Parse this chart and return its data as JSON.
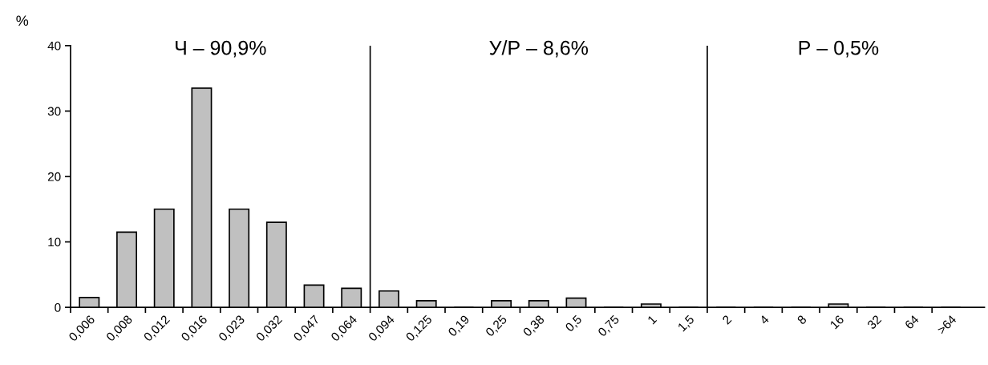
{
  "chart_data": {
    "type": "bar",
    "ylabel": "%",
    "categories": [
      "0,006",
      "0,008",
      "0,012",
      "0,016",
      "0,023",
      "0,032",
      "0,047",
      "0,064",
      "0,094",
      "0,125",
      "0,19",
      "0,25",
      "0,38",
      "0,5",
      "0,75",
      "1",
      "1,5",
      "2",
      "4",
      "8",
      "16",
      "32",
      "64",
      ">64"
    ],
    "values": [
      1.5,
      11.5,
      15,
      33.5,
      15,
      13,
      3.4,
      2.9,
      2.5,
      1.0,
      0,
      1.0,
      1.0,
      1.4,
      0,
      0.5,
      0,
      0,
      0,
      0,
      0.5,
      0,
      0,
      0
    ],
    "color": "#c0c0c0",
    "ylim": [
      0,
      40
    ],
    "yticks": [
      0,
      10,
      20,
      30,
      40
    ],
    "grid": false,
    "annotations": [
      "Ч – 90,9%",
      "У/Р – 8,6%",
      "Р – 0,5%"
    ]
  }
}
